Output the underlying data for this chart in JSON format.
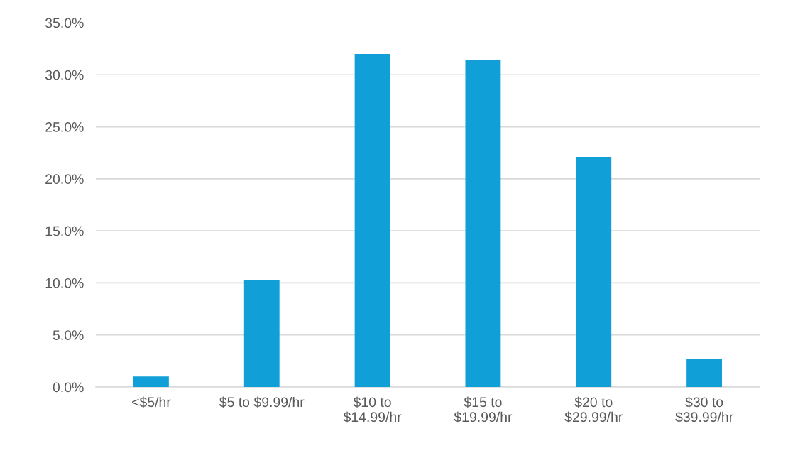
{
  "chart_data": {
    "type": "bar",
    "categories": [
      "<$5/hr",
      "$5 to $9.99/hr",
      "$10 to\n$14.99/hr",
      "$15 to\n$19.99/hr",
      "$20 to\n$29.99/hr",
      "$30 to\n$39.99/hr"
    ],
    "values": [
      1.0,
      10.3,
      32.0,
      31.4,
      22.1,
      2.7
    ],
    "color": "#119fd7",
    "ylim": [
      0,
      35
    ],
    "yticks": [
      {
        "value": 0,
        "label": "0.0%"
      },
      {
        "value": 5,
        "label": "5.0%"
      },
      {
        "value": 10,
        "label": "10.0%"
      },
      {
        "value": 15,
        "label": "15.0%"
      },
      {
        "value": 20,
        "label": "20.0%"
      },
      {
        "value": 25,
        "label": "25.0%"
      },
      {
        "value": 30,
        "label": "30.0%"
      },
      {
        "value": 35,
        "label": "35.0%"
      }
    ],
    "grid": "y"
  }
}
